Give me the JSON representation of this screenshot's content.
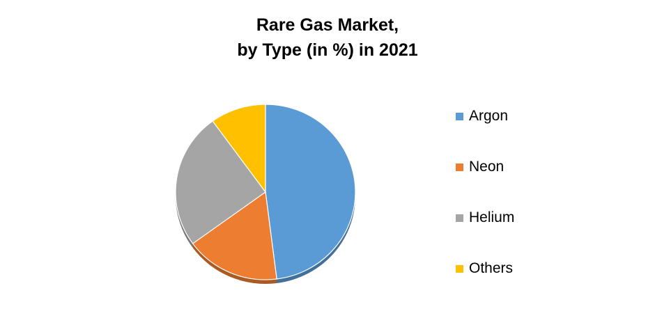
{
  "chart_data": {
    "type": "pie",
    "title_lines": [
      "Rare Gas Market,",
      "by Type (in %) in 2021"
    ],
    "categories": [
      "Argon",
      "Neon",
      "Helium",
      "Others"
    ],
    "values": [
      48,
      17,
      25,
      10
    ],
    "colors": [
      "#5B9BD5",
      "#ED7D31",
      "#A5A5A5",
      "#FFC000"
    ],
    "legend_position": "right",
    "start_angle": "12 o'clock",
    "direction": "clockwise",
    "style": "3d-tilt"
  }
}
